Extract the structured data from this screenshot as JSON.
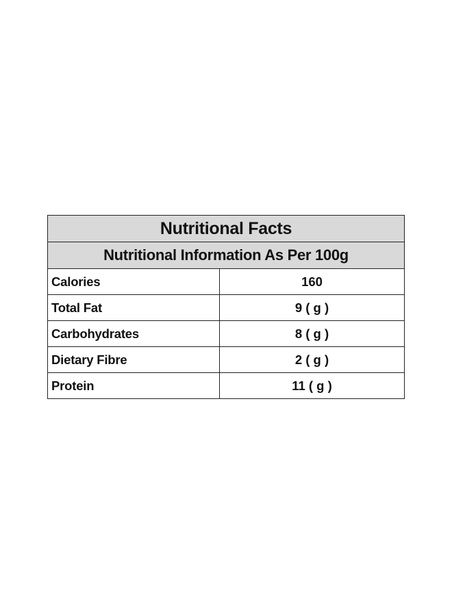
{
  "table": {
    "title": "Nutritional Facts",
    "subtitle": "Nutritional Information As Per 100g",
    "rows": [
      {
        "label": "Calories",
        "value": "160"
      },
      {
        "label": "Total Fat",
        "value": "9 ( g )"
      },
      {
        "label": "Carbohydrates",
        "value": "8 ( g )"
      },
      {
        "label": "Dietary Fibre",
        "value": "2 ( g )"
      },
      {
        "label": "Protein",
        "value": "11 ( g )"
      }
    ]
  },
  "colors": {
    "header_background": "#d9d9d9",
    "border": "#222222",
    "text": "#111111",
    "page_background": "#ffffff"
  }
}
